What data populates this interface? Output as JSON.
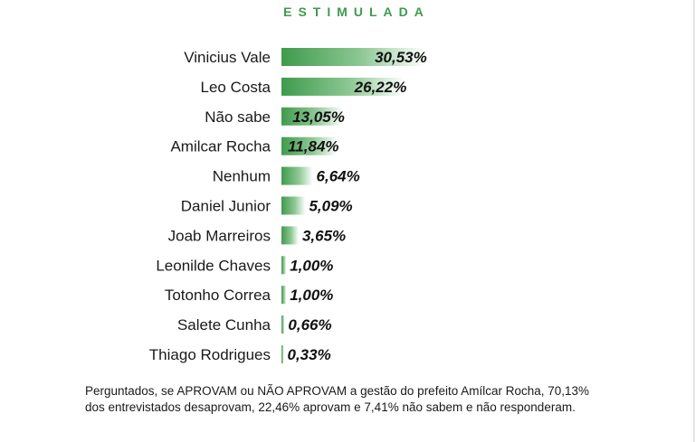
{
  "chart_data": {
    "type": "bar",
    "orientation": "horizontal",
    "title": "ESTIMULADA",
    "categories": [
      "Vinicius Vale",
      "Leo Costa",
      "Não sabe",
      "Amilcar Rocha",
      "Nenhum",
      "Daniel Junior",
      "Joab Marreiros",
      "Leonilde Chaves",
      "Totonho Correa",
      "Salete Cunha",
      "Thiago Rodrigues"
    ],
    "values": [
      30.53,
      26.22,
      13.05,
      11.84,
      6.64,
      5.09,
      3.65,
      1.0,
      1.0,
      0.66,
      0.33
    ],
    "value_labels": [
      "30,53%",
      "26,22%",
      "13,05%",
      "11,84%",
      "6,64%",
      "5,09%",
      "3,65%",
      "1,00%",
      "1,00%",
      "0,66%",
      "0,33%"
    ],
    "xlabel": "",
    "ylabel": "",
    "grid": false,
    "legend": "none",
    "bar_color": "#3f9b4c"
  },
  "footnote": "Perguntados, se APROVAM ou NÃO APROVAM a gestão do prefeito Amílcar Rocha, 70,13% dos entrevistados desaprovam, 22,46% aprovam e 7,41% não sabem e não responderam."
}
